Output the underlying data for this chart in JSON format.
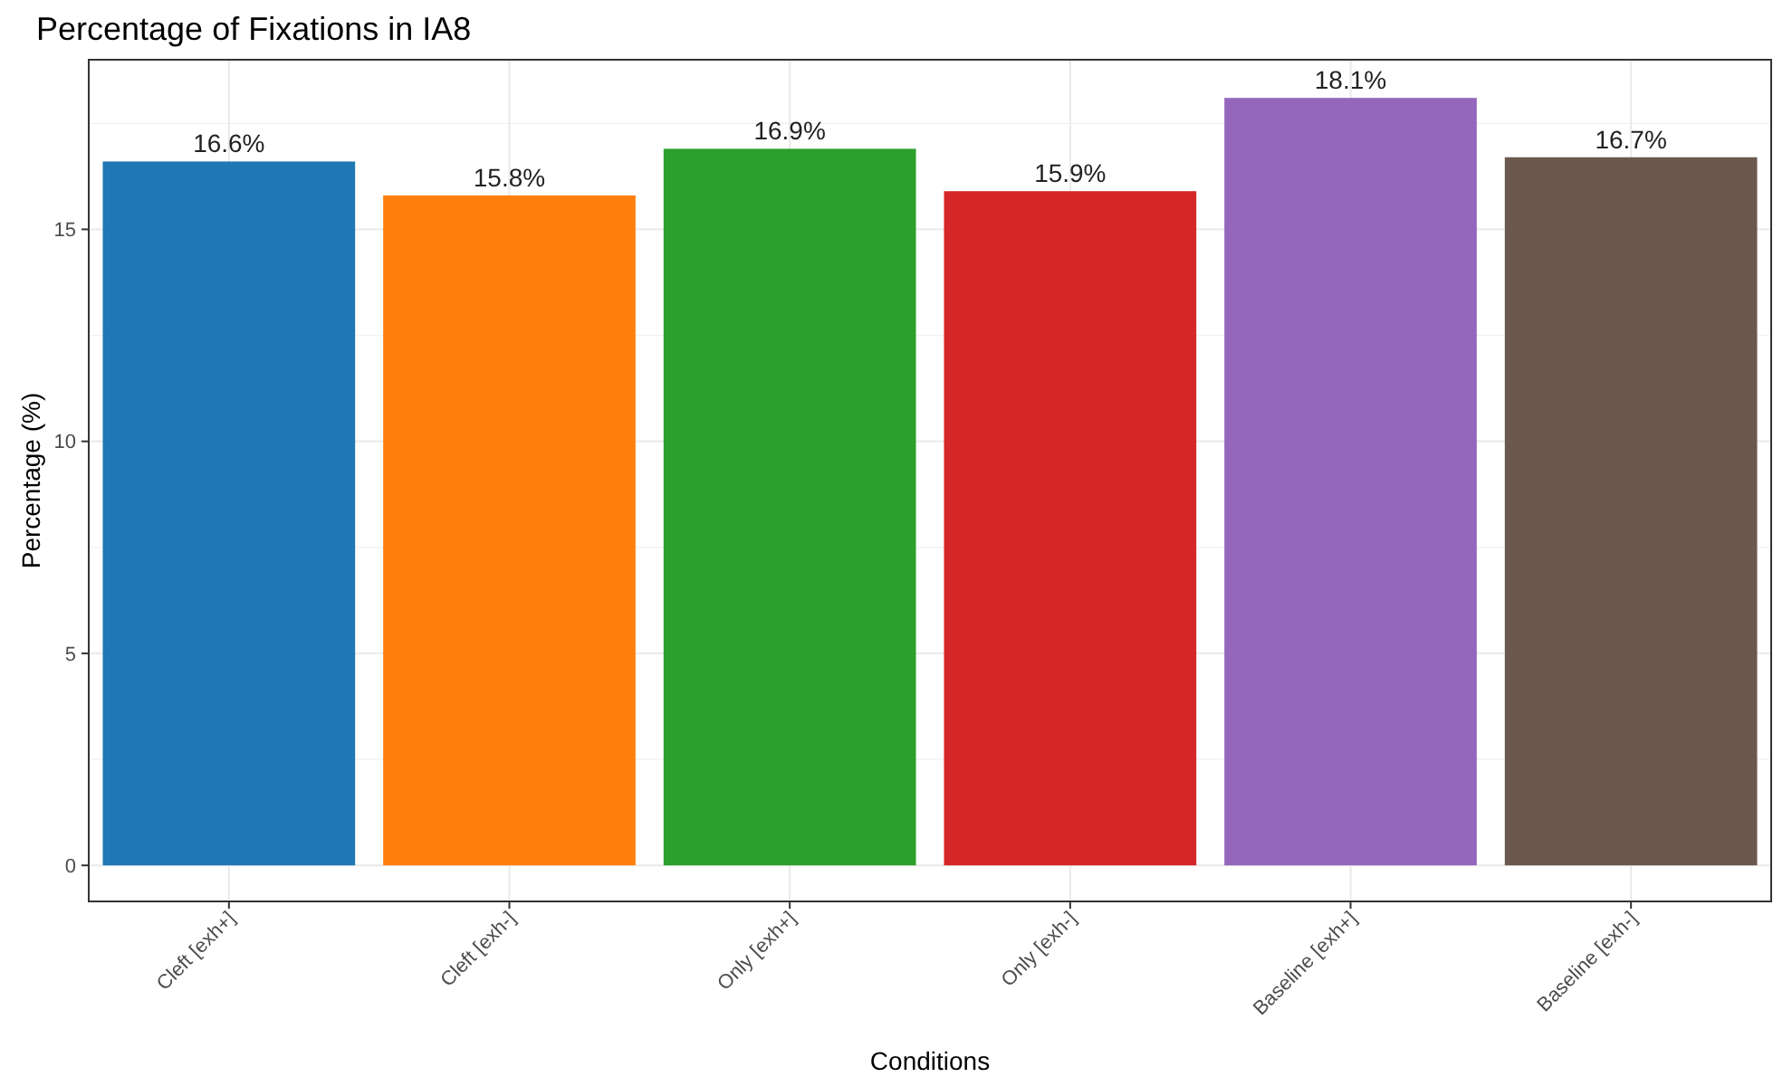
{
  "chart_data": {
    "type": "bar",
    "title": "Percentage of Fixations in IA8",
    "xlabel": "Conditions",
    "ylabel": "Percentage (%)",
    "categories": [
      "Cleft [exh+]",
      "Cleft [exh-]",
      "Only [exh+]",
      "Only [exh-]",
      "Baseline [exh+]",
      "Baseline [exh-]"
    ],
    "values": [
      16.6,
      15.8,
      16.9,
      15.9,
      18.1,
      16.7
    ],
    "value_labels": [
      "16.6%",
      "15.8%",
      "16.9%",
      "15.9%",
      "18.1%",
      "16.7%"
    ],
    "colors": [
      "#1f77b4",
      "#ff7f0e",
      "#2ca02c",
      "#d62728",
      "#9467bd",
      "#6a584e"
    ],
    "ylim": [
      -0.85,
      19.0
    ],
    "yticks": [
      0,
      5,
      10,
      15
    ],
    "grid": true
  }
}
